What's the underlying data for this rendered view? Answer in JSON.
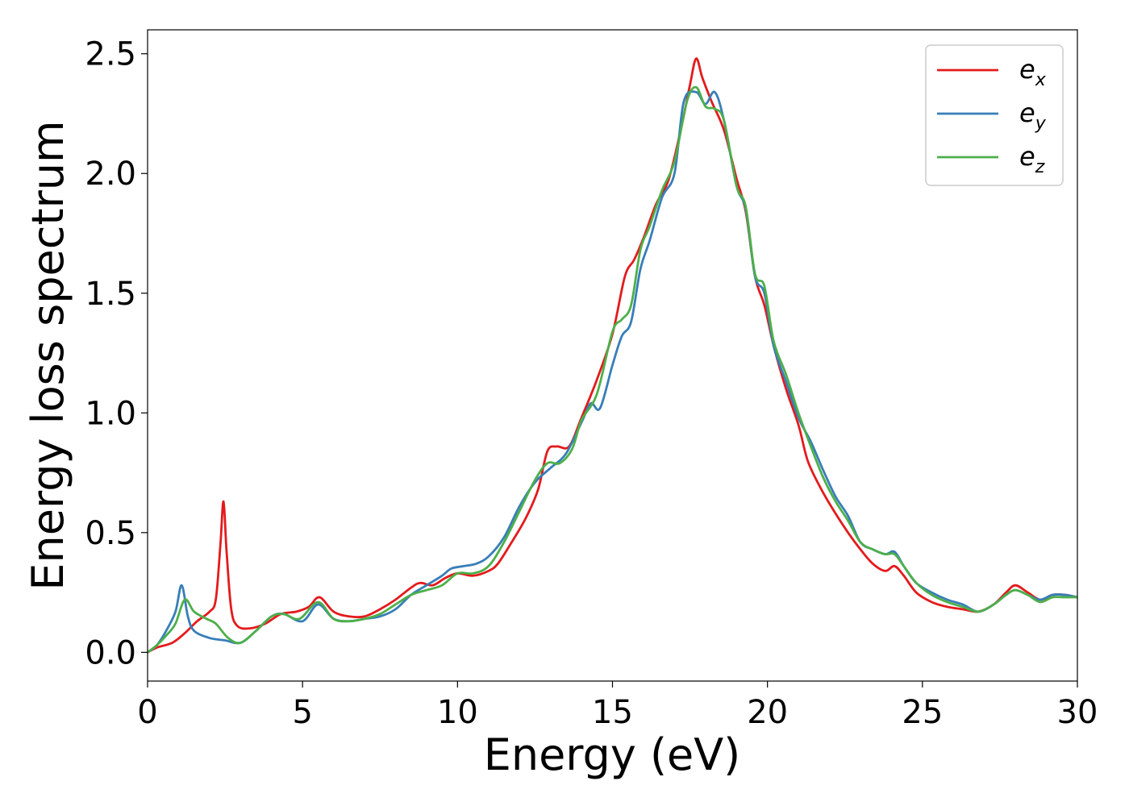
{
  "chart_data": {
    "type": "line",
    "title": "",
    "xlabel": "Energy (eV)",
    "ylabel": "Energy loss spectrum",
    "xlim": [
      0,
      30
    ],
    "ylim": [
      -0.12,
      2.6
    ],
    "xticks": [
      0,
      5,
      10,
      15,
      20,
      25,
      30
    ],
    "xtick_labels": [
      "0",
      "5",
      "10",
      "15",
      "20",
      "25",
      "30"
    ],
    "yticks": [
      0.0,
      0.5,
      1.0,
      1.5,
      2.0,
      2.5
    ],
    "ytick_labels": [
      "0.0",
      "0.5",
      "1.0",
      "1.5",
      "2.0",
      "2.5"
    ],
    "grid": false,
    "legend": {
      "placement": "top-right"
    },
    "series": [
      {
        "name": "e_x",
        "label_base": "e",
        "label_sub": "x",
        "color": "#e41a1c",
        "points": [
          [
            0,
            0
          ],
          [
            0.3,
            0.02
          ],
          [
            0.8,
            0.04
          ],
          [
            1.2,
            0.08
          ],
          [
            1.6,
            0.13
          ],
          [
            2.0,
            0.17
          ],
          [
            2.2,
            0.22
          ],
          [
            2.35,
            0.45
          ],
          [
            2.45,
            0.63
          ],
          [
            2.55,
            0.42
          ],
          [
            2.7,
            0.18
          ],
          [
            2.9,
            0.11
          ],
          [
            3.3,
            0.1
          ],
          [
            3.8,
            0.12
          ],
          [
            4.3,
            0.16
          ],
          [
            4.8,
            0.17
          ],
          [
            5.2,
            0.19
          ],
          [
            5.55,
            0.23
          ],
          [
            6.0,
            0.17
          ],
          [
            6.5,
            0.15
          ],
          [
            7.0,
            0.15
          ],
          [
            7.5,
            0.18
          ],
          [
            8.0,
            0.22
          ],
          [
            8.5,
            0.27
          ],
          [
            8.8,
            0.29
          ],
          [
            9.2,
            0.28
          ],
          [
            9.6,
            0.31
          ],
          [
            10.0,
            0.33
          ],
          [
            10.5,
            0.32
          ],
          [
            11.0,
            0.34
          ],
          [
            11.3,
            0.37
          ],
          [
            11.7,
            0.45
          ],
          [
            12.2,
            0.56
          ],
          [
            12.6,
            0.68
          ],
          [
            12.9,
            0.84
          ],
          [
            13.2,
            0.86
          ],
          [
            13.6,
            0.86
          ],
          [
            14.0,
            0.98
          ],
          [
            14.5,
            1.14
          ],
          [
            15.0,
            1.33
          ],
          [
            15.4,
            1.57
          ],
          [
            15.7,
            1.64
          ],
          [
            16.0,
            1.73
          ],
          [
            16.4,
            1.87
          ],
          [
            16.8,
            1.97
          ],
          [
            17.2,
            2.18
          ],
          [
            17.5,
            2.37
          ],
          [
            17.7,
            2.48
          ],
          [
            17.9,
            2.4
          ],
          [
            18.2,
            2.3
          ],
          [
            18.6,
            2.18
          ],
          [
            19.0,
            1.98
          ],
          [
            19.3,
            1.84
          ],
          [
            19.6,
            1.57
          ],
          [
            19.9,
            1.45
          ],
          [
            20.2,
            1.28
          ],
          [
            20.6,
            1.1
          ],
          [
            21.0,
            0.95
          ],
          [
            21.3,
            0.8
          ],
          [
            21.7,
            0.69
          ],
          [
            22.1,
            0.6
          ],
          [
            22.6,
            0.5
          ],
          [
            23.0,
            0.43
          ],
          [
            23.4,
            0.37
          ],
          [
            23.8,
            0.34
          ],
          [
            24.1,
            0.36
          ],
          [
            24.4,
            0.32
          ],
          [
            24.8,
            0.25
          ],
          [
            25.3,
            0.21
          ],
          [
            25.8,
            0.19
          ],
          [
            26.3,
            0.18
          ],
          [
            26.8,
            0.17
          ],
          [
            27.3,
            0.2
          ],
          [
            27.7,
            0.25
          ],
          [
            28.0,
            0.28
          ],
          [
            28.4,
            0.25
          ],
          [
            28.8,
            0.22
          ],
          [
            29.2,
            0.24
          ],
          [
            29.6,
            0.24
          ],
          [
            30,
            0.23
          ]
        ]
      },
      {
        "name": "e_y",
        "label_base": "e",
        "label_sub": "y",
        "color": "#377eb8",
        "points": [
          [
            0,
            0
          ],
          [
            0.3,
            0.03
          ],
          [
            0.6,
            0.09
          ],
          [
            0.9,
            0.17
          ],
          [
            1.1,
            0.28
          ],
          [
            1.3,
            0.15
          ],
          [
            1.5,
            0.09
          ],
          [
            2.0,
            0.06
          ],
          [
            2.5,
            0.05
          ],
          [
            3.0,
            0.04
          ],
          [
            3.5,
            0.09
          ],
          [
            4.0,
            0.15
          ],
          [
            4.4,
            0.16
          ],
          [
            5.0,
            0.13
          ],
          [
            5.5,
            0.2
          ],
          [
            6.0,
            0.14
          ],
          [
            6.5,
            0.13
          ],
          [
            7.0,
            0.14
          ],
          [
            7.5,
            0.15
          ],
          [
            8.0,
            0.18
          ],
          [
            8.5,
            0.24
          ],
          [
            9.0,
            0.28
          ],
          [
            9.5,
            0.32
          ],
          [
            9.8,
            0.35
          ],
          [
            10.2,
            0.36
          ],
          [
            10.6,
            0.37
          ],
          [
            11.0,
            0.4
          ],
          [
            11.5,
            0.48
          ],
          [
            12.0,
            0.61
          ],
          [
            12.5,
            0.71
          ],
          [
            13.0,
            0.77
          ],
          [
            13.5,
            0.83
          ],
          [
            14.0,
            0.96
          ],
          [
            14.3,
            1.04
          ],
          [
            14.6,
            1.02
          ],
          [
            15.0,
            1.2
          ],
          [
            15.3,
            1.32
          ],
          [
            15.6,
            1.38
          ],
          [
            15.9,
            1.6
          ],
          [
            16.2,
            1.72
          ],
          [
            16.6,
            1.9
          ],
          [
            17.0,
            2.0
          ],
          [
            17.3,
            2.3
          ],
          [
            17.7,
            2.34
          ],
          [
            18.0,
            2.29
          ],
          [
            18.3,
            2.34
          ],
          [
            18.6,
            2.22
          ],
          [
            19.0,
            1.95
          ],
          [
            19.3,
            1.85
          ],
          [
            19.6,
            1.57
          ],
          [
            19.9,
            1.5
          ],
          [
            20.2,
            1.28
          ],
          [
            20.6,
            1.13
          ],
          [
            21.0,
            0.98
          ],
          [
            21.4,
            0.88
          ],
          [
            21.8,
            0.76
          ],
          [
            22.2,
            0.65
          ],
          [
            22.6,
            0.57
          ],
          [
            23.0,
            0.46
          ],
          [
            23.4,
            0.43
          ],
          [
            23.8,
            0.41
          ],
          [
            24.1,
            0.42
          ],
          [
            24.4,
            0.36
          ],
          [
            24.8,
            0.29
          ],
          [
            25.3,
            0.25
          ],
          [
            25.8,
            0.22
          ],
          [
            26.3,
            0.2
          ],
          [
            26.8,
            0.17
          ],
          [
            27.3,
            0.2
          ],
          [
            27.7,
            0.24
          ],
          [
            28.0,
            0.26
          ],
          [
            28.4,
            0.24
          ],
          [
            28.8,
            0.22
          ],
          [
            29.2,
            0.24
          ],
          [
            29.6,
            0.24
          ],
          [
            30,
            0.23
          ]
        ]
      },
      {
        "name": "e_z",
        "label_base": "e",
        "label_sub": "z",
        "color": "#4daf4a",
        "points": [
          [
            0,
            0
          ],
          [
            0.3,
            0.03
          ],
          [
            0.6,
            0.07
          ],
          [
            0.9,
            0.12
          ],
          [
            1.2,
            0.22
          ],
          [
            1.5,
            0.17
          ],
          [
            1.9,
            0.14
          ],
          [
            2.2,
            0.12
          ],
          [
            2.6,
            0.06
          ],
          [
            3.0,
            0.04
          ],
          [
            3.5,
            0.09
          ],
          [
            4.0,
            0.15
          ],
          [
            4.4,
            0.16
          ],
          [
            4.9,
            0.14
          ],
          [
            5.5,
            0.21
          ],
          [
            6.0,
            0.14
          ],
          [
            6.5,
            0.13
          ],
          [
            7.0,
            0.14
          ],
          [
            7.5,
            0.16
          ],
          [
            8.0,
            0.2
          ],
          [
            8.5,
            0.24
          ],
          [
            9.0,
            0.26
          ],
          [
            9.5,
            0.28
          ],
          [
            10.0,
            0.33
          ],
          [
            10.5,
            0.33
          ],
          [
            11.0,
            0.36
          ],
          [
            11.5,
            0.46
          ],
          [
            12.0,
            0.59
          ],
          [
            12.5,
            0.72
          ],
          [
            12.9,
            0.79
          ],
          [
            13.3,
            0.79
          ],
          [
            13.7,
            0.85
          ],
          [
            14.0,
            0.97
          ],
          [
            14.5,
            1.08
          ],
          [
            15.0,
            1.34
          ],
          [
            15.3,
            1.39
          ],
          [
            15.6,
            1.45
          ],
          [
            15.9,
            1.68
          ],
          [
            16.2,
            1.78
          ],
          [
            16.6,
            1.93
          ],
          [
            17.0,
            2.05
          ],
          [
            17.4,
            2.3
          ],
          [
            17.7,
            2.36
          ],
          [
            18.0,
            2.28
          ],
          [
            18.3,
            2.27
          ],
          [
            18.6,
            2.22
          ],
          [
            19.0,
            1.95
          ],
          [
            19.3,
            1.86
          ],
          [
            19.6,
            1.58
          ],
          [
            19.9,
            1.53
          ],
          [
            20.2,
            1.3
          ],
          [
            20.6,
            1.16
          ],
          [
            21.0,
            1.0
          ],
          [
            21.4,
            0.86
          ],
          [
            21.8,
            0.73
          ],
          [
            22.2,
            0.63
          ],
          [
            22.6,
            0.55
          ],
          [
            23.0,
            0.46
          ],
          [
            23.4,
            0.43
          ],
          [
            23.8,
            0.41
          ],
          [
            24.1,
            0.41
          ],
          [
            24.4,
            0.36
          ],
          [
            24.8,
            0.29
          ],
          [
            25.3,
            0.24
          ],
          [
            25.8,
            0.21
          ],
          [
            26.3,
            0.19
          ],
          [
            26.8,
            0.17
          ],
          [
            27.3,
            0.2
          ],
          [
            27.7,
            0.24
          ],
          [
            28.0,
            0.26
          ],
          [
            28.4,
            0.24
          ],
          [
            28.8,
            0.21
          ],
          [
            29.2,
            0.23
          ],
          [
            29.6,
            0.23
          ],
          [
            30,
            0.23
          ]
        ]
      }
    ]
  }
}
